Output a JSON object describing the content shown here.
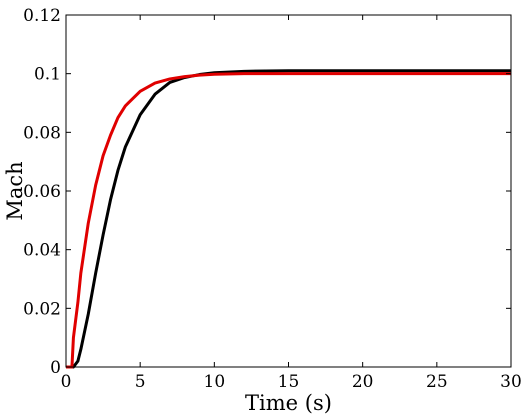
{
  "chart_data": {
    "type": "line",
    "title": "",
    "xlabel": "Time (s)",
    "ylabel": "Mach",
    "xlim": [
      0,
      30
    ],
    "ylim": [
      0,
      0.12
    ],
    "xticks": [
      0,
      5,
      10,
      15,
      20,
      25,
      30
    ],
    "yticks": [
      0,
      0.02,
      0.04,
      0.06,
      0.08,
      0.1,
      0.12
    ],
    "xtick_labels": [
      "0",
      "5",
      "10",
      "15",
      "20",
      "25",
      "30"
    ],
    "ytick_labels": [
      "0",
      "0.02",
      "0.04",
      "0.06",
      "0.08",
      "0.1",
      "0.12"
    ],
    "grid": false,
    "legend": "none",
    "series": [
      {
        "color": "#000000",
        "x": [
          0,
          0.5,
          0.8,
          1,
          1.5,
          2,
          2.5,
          3,
          3.5,
          4,
          5,
          6,
          7,
          8,
          9,
          10,
          12,
          15,
          20,
          25,
          30
        ],
        "y": [
          0,
          0,
          0.002,
          0.006,
          0.018,
          0.032,
          0.045,
          0.057,
          0.067,
          0.075,
          0.086,
          0.093,
          0.097,
          0.0987,
          0.0997,
          0.1003,
          0.1008,
          0.101,
          0.101,
          0.101,
          0.101
        ]
      },
      {
        "color": "#e00000",
        "x": [
          0,
          0.4,
          0.5,
          0.8,
          1,
          1.5,
          2,
          2.5,
          3,
          3.5,
          4,
          5,
          6,
          7,
          8,
          9,
          10,
          12,
          15,
          20,
          25,
          30
        ],
        "y": [
          0,
          0,
          0.01,
          0.022,
          0.032,
          0.049,
          0.062,
          0.072,
          0.079,
          0.085,
          0.089,
          0.094,
          0.0968,
          0.0982,
          0.099,
          0.0995,
          0.0998,
          0.1,
          0.1,
          0.1,
          0.1,
          0.1
        ]
      }
    ]
  }
}
